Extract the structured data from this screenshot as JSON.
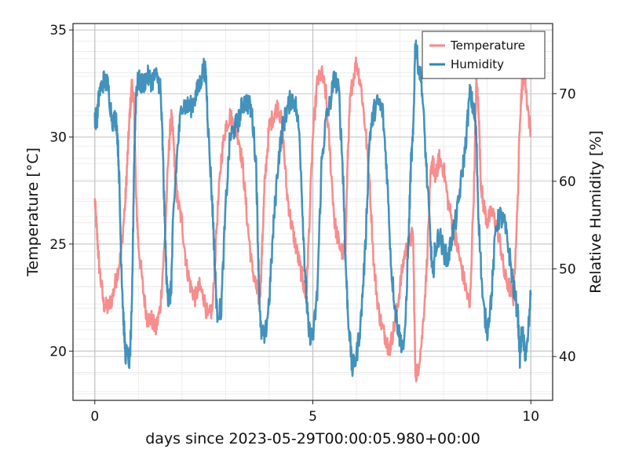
{
  "chart_data": {
    "type": "line",
    "xlabel": "days since 2023-05-29T00:00:05.980+00:00",
    "ylabel": "Temperature [°C]",
    "y2label": "Relative Humidity [%]",
    "xlim": [
      -0.5,
      10.5
    ],
    "ylim": [
      17.7,
      35.3
    ],
    "y2lim": [
      35,
      78
    ],
    "xticks": [
      0,
      5,
      10
    ],
    "yticks": [
      20,
      25,
      30,
      35
    ],
    "y2ticks": [
      40,
      50,
      60,
      70
    ],
    "grid": true,
    "legend": {
      "placement": "top-right",
      "entries": [
        "Temperature",
        "Humidity"
      ]
    },
    "series": [
      {
        "name": "Temperature",
        "axis": "left",
        "color": "#f78787",
        "x": [
          0,
          0.05,
          0.1,
          0.2,
          0.3,
          0.4,
          0.5,
          0.6,
          0.7,
          0.75,
          0.8,
          0.85,
          0.9,
          0.95,
          1.0,
          1.1,
          1.2,
          1.3,
          1.4,
          1.5,
          1.6,
          1.7,
          1.75,
          1.8,
          1.85,
          1.9,
          2.0,
          2.1,
          2.2,
          2.3,
          2.4,
          2.5,
          2.6,
          2.7,
          2.8,
          2.9,
          3.0,
          3.1,
          3.2,
          3.3,
          3.4,
          3.5,
          3.6,
          3.7,
          3.75,
          3.8,
          3.85,
          3.9,
          4.0,
          4.1,
          4.2,
          4.3,
          4.4,
          4.5,
          4.6,
          4.7,
          4.8,
          4.85,
          4.9,
          5.0,
          5.1,
          5.2,
          5.3,
          5.4,
          5.5,
          5.6,
          5.7,
          5.75,
          5.8,
          5.85,
          5.9,
          6.0,
          6.1,
          6.2,
          6.3,
          6.4,
          6.5,
          6.6,
          6.7,
          6.75,
          6.8,
          6.9,
          7.0,
          7.1,
          7.2,
          7.3,
          7.35,
          7.4,
          7.5,
          7.6,
          7.7,
          7.75,
          7.8,
          7.85,
          7.9,
          8.0,
          8.1,
          8.2,
          8.3,
          8.4,
          8.5,
          8.6,
          8.7,
          8.75,
          8.8,
          8.85,
          8.9,
          9.0,
          9.1,
          9.2,
          9.3,
          9.4,
          9.5,
          9.6,
          9.7,
          9.75,
          9.8,
          9.85,
          9.9,
          10.0
        ],
        "values": [
          27.0,
          25.5,
          24.0,
          22.2,
          22.0,
          22.5,
          23.5,
          24.5,
          27.0,
          29.0,
          31.0,
          32.5,
          31.5,
          27.0,
          25.0,
          23.0,
          21.5,
          21.5,
          21.0,
          22.0,
          25.0,
          29.5,
          31.0,
          30.0,
          28.0,
          27.0,
          26.0,
          24.0,
          23.0,
          22.5,
          23.0,
          22.5,
          21.5,
          22.0,
          26.0,
          29.0,
          30.5,
          31.0,
          30.5,
          30.0,
          28.5,
          26.0,
          24.0,
          23.0,
          22.5,
          23.0,
          25.5,
          28.0,
          30.5,
          31.0,
          31.5,
          30.5,
          27.5,
          26.0,
          25.0,
          24.0,
          23.0,
          22.5,
          25.0,
          30.0,
          32.5,
          33.0,
          32.0,
          29.0,
          26.0,
          25.0,
          24.5,
          25.0,
          29.0,
          31.5,
          32.5,
          33.5,
          32.5,
          30.5,
          28.0,
          24.0,
          22.0,
          21.0,
          20.5,
          20.0,
          20.5,
          21.5,
          23.0,
          24.5,
          25.0,
          25.5,
          19.0,
          19.0,
          20.5,
          23.5,
          28.0,
          29.0,
          28.0,
          28.5,
          29.0,
          28.5,
          27.0,
          26.0,
          25.0,
          24.0,
          23.0,
          22.0,
          28.0,
          32.5,
          31.5,
          28.0,
          27.0,
          26.0,
          26.5,
          26.0,
          25.0,
          23.5,
          23.0,
          22.5,
          27.0,
          31.0,
          32.5,
          33.0,
          32.0,
          30.0
        ]
      },
      {
        "name": "Humidity",
        "axis": "right",
        "color": "#2e86b5",
        "x": [
          0,
          0.05,
          0.1,
          0.2,
          0.3,
          0.4,
          0.5,
          0.55,
          0.6,
          0.65,
          0.7,
          0.8,
          0.85,
          0.9,
          0.95,
          1.0,
          1.1,
          1.2,
          1.3,
          1.4,
          1.5,
          1.55,
          1.6,
          1.65,
          1.7,
          1.75,
          1.8,
          1.9,
          2.0,
          2.1,
          2.2,
          2.3,
          2.4,
          2.5,
          2.55,
          2.6,
          2.7,
          2.75,
          2.8,
          2.9,
          3.0,
          3.1,
          3.2,
          3.3,
          3.4,
          3.5,
          3.6,
          3.7,
          3.75,
          3.8,
          3.9,
          4.0,
          4.1,
          4.2,
          4.3,
          4.4,
          4.5,
          4.6,
          4.7,
          4.8,
          4.85,
          4.9,
          5.0,
          5.1,
          5.2,
          5.3,
          5.4,
          5.5,
          5.6,
          5.7,
          5.75,
          5.8,
          5.9,
          6.0,
          6.1,
          6.2,
          6.3,
          6.4,
          6.5,
          6.6,
          6.7,
          6.8,
          6.9,
          7.0,
          7.1,
          7.2,
          7.25,
          7.3,
          7.35,
          7.4,
          7.5,
          7.6,
          7.7,
          7.75,
          7.8,
          7.9,
          8.0,
          8.1,
          8.2,
          8.3,
          8.4,
          8.5,
          8.6,
          8.7,
          8.75,
          8.8,
          8.9,
          9.0,
          9.1,
          9.2,
          9.3,
          9.4,
          9.5,
          9.6,
          9.7,
          9.75,
          9.8,
          9.85,
          9.9,
          10.0
        ],
        "values": [
          67.5,
          67.0,
          70.0,
          71.5,
          71.0,
          67.0,
          67.0,
          62.0,
          52.0,
          45.0,
          40.5,
          39.5,
          45.0,
          62.0,
          70.5,
          71.5,
          71.0,
          72.0,
          71.5,
          72.0,
          71.0,
          65.0,
          56.0,
          48.0,
          46.5,
          47.5,
          56.0,
          64.0,
          69.0,
          68.5,
          68.5,
          69.5,
          71.0,
          73.0,
          72.0,
          66.0,
          57.0,
          51.0,
          45.0,
          45.5,
          57.0,
          65.0,
          66.0,
          67.0,
          69.0,
          69.0,
          68.0,
          62.0,
          51.0,
          43.0,
          42.0,
          46.5,
          55.0,
          62.0,
          66.0,
          68.0,
          69.5,
          69.0,
          65.0,
          52.0,
          47.0,
          43.0,
          42.0,
          47.0,
          62.0,
          67.0,
          69.0,
          72.0,
          70.0,
          60.0,
          51.0,
          45.5,
          38.5,
          40.0,
          44.0,
          52.0,
          65.0,
          68.0,
          69.0,
          68.0,
          61.0,
          50.0,
          45.0,
          42.0,
          41.0,
          54.0,
          62.0,
          65.0,
          76.0,
          74.0,
          71.0,
          62.0,
          53.0,
          49.0,
          52.0,
          54.0,
          52.0,
          51.0,
          54.0,
          56.0,
          60.0,
          64.0,
          70.0,
          68.0,
          65.0,
          56.0,
          46.0,
          43.0,
          47.0,
          55.0,
          56.0,
          55.0,
          52.0,
          48.0,
          45.0,
          40.0,
          43.0,
          41.0,
          40.0,
          47.0
        ]
      }
    ]
  }
}
